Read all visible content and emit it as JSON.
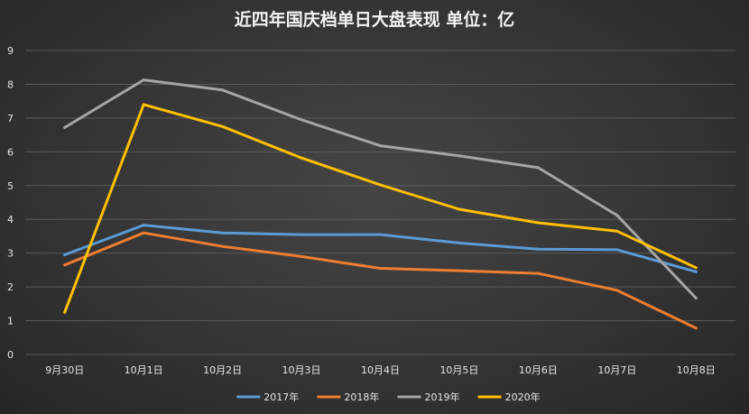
{
  "chart_data": {
    "type": "line",
    "title": "近四年国庆档单日大盘表现 单位：亿",
    "categories": [
      "9月30日",
      "10月1日",
      "10月2日",
      "10月3日",
      "10月4日",
      "10月5日",
      "10月6日",
      "10月7日",
      "10月8日"
    ],
    "ylim": [
      0,
      9
    ],
    "yticks": [
      0,
      1,
      2,
      3,
      4,
      5,
      6,
      7,
      8,
      9
    ],
    "grid": true,
    "legend_position": "bottom",
    "series": [
      {
        "name": "2017年",
        "color": "#5b9bd5",
        "values": [
          2.95,
          3.83,
          3.6,
          3.55,
          3.55,
          3.3,
          3.12,
          3.1,
          2.45
        ]
      },
      {
        "name": "2018年",
        "color": "#ed7d31",
        "values": [
          2.65,
          3.6,
          3.2,
          2.9,
          2.55,
          2.48,
          2.4,
          1.9,
          0.78
        ]
      },
      {
        "name": "2019年",
        "color": "#a5a5a5",
        "values": [
          6.72,
          8.13,
          7.83,
          6.95,
          6.18,
          5.88,
          5.53,
          4.12,
          1.67
        ]
      },
      {
        "name": "2020年",
        "color": "#ffc000",
        "values": [
          1.25,
          7.4,
          6.75,
          5.82,
          5.02,
          4.3,
          3.9,
          3.65,
          2.57
        ]
      }
    ]
  }
}
